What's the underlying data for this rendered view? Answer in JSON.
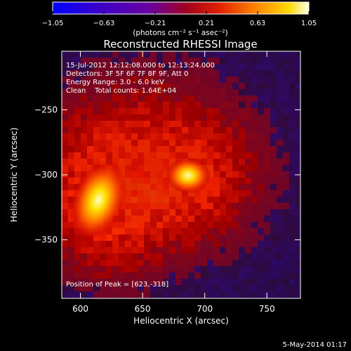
{
  "chart_data": {
    "type": "heatmap",
    "title": "Reconstructed RHESSI Image",
    "xlabel": "Heliocentric X (arcsec)",
    "ylabel": "Heliocentric Y (arcsec)",
    "xlim": [
      585,
      777
    ],
    "ylim": [
      -395,
      -205
    ],
    "x_ticks": [
      600,
      650,
      700,
      750
    ],
    "y_ticks": [
      -250,
      -300,
      -350
    ],
    "grid": false,
    "colorbar": {
      "position": "top",
      "min": -1.05,
      "max": 1.05,
      "tick_values": [
        -1.05,
        -0.63,
        -0.21,
        0.21,
        0.63,
        1.05
      ],
      "tick_labels": [
        "-1.05",
        "-0.63",
        "-0.21",
        "0.21",
        "0.63",
        "1.05"
      ],
      "unit_label": "(photons cm⁻² s⁻¹ asec⁻²)"
    },
    "annotations": [
      "15-Jul-2012 12:12:08.000 to 12:13:24.000",
      "Detectors: 3F 5F 6F 7F 8F 9F, Att 0",
      "Energy Range: 3.0 - 6.0 keV",
      "Clean    Total counts: 1.64E+04"
    ],
    "peak_label": "Position of Peak = [623,-318]",
    "sources": [
      {
        "x": 623,
        "y": -318,
        "intensity": 1.0
      },
      {
        "x": 695,
        "y": -300,
        "intensity": 0.9
      }
    ],
    "footer_date": "5-May-2014 01:17"
  }
}
